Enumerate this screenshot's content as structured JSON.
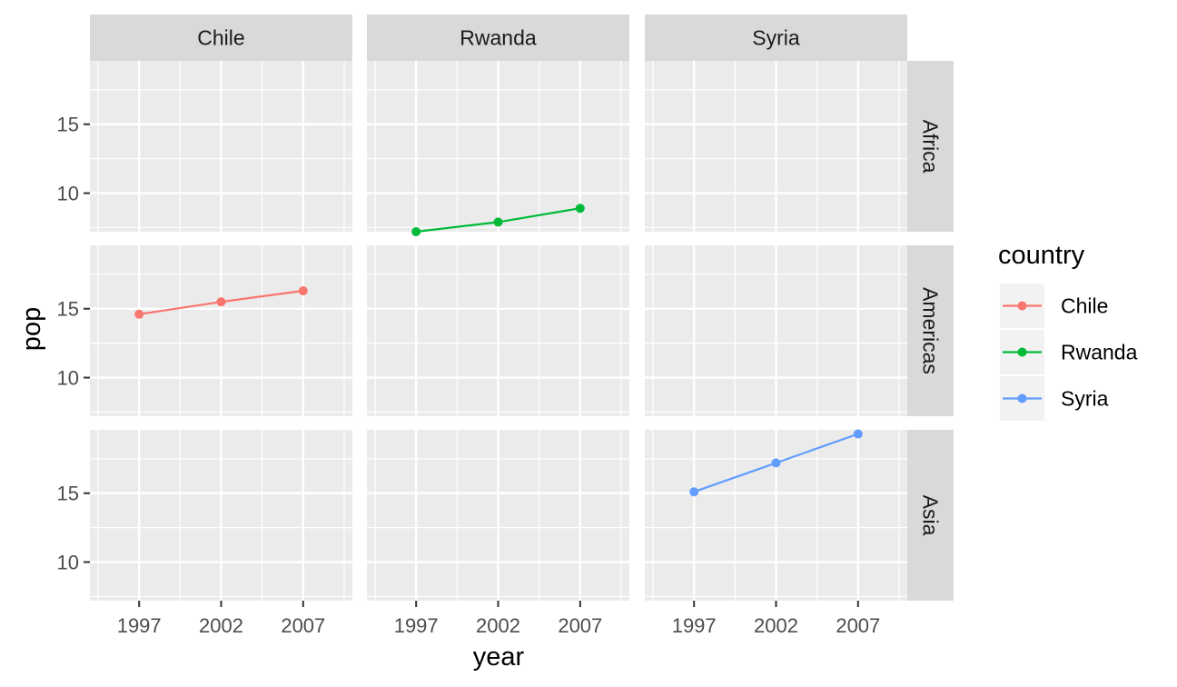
{
  "chart_data": {
    "type": "line",
    "facet_columns": [
      "Chile",
      "Rwanda",
      "Syria"
    ],
    "facet_rows": [
      "Africa",
      "Americas",
      "Asia"
    ],
    "xlabel": "year",
    "ylabel": "pop",
    "x_ticks": [
      1997,
      2002,
      2007
    ],
    "x_tick_labels": [
      "1997",
      "2002",
      "2007"
    ],
    "y_ticks": [
      10,
      15
    ],
    "y_tick_labels": [
      "10",
      "15"
    ],
    "xlim": [
      1994,
      2010
    ],
    "ylim": [
      7.2,
      19.6
    ],
    "markers": true,
    "grid": true,
    "legend": {
      "title": "country",
      "position": "right",
      "entries": [
        {
          "name": "Chile",
          "color": "#F8766D"
        },
        {
          "name": "Rwanda",
          "color": "#00BA38"
        },
        {
          "name": "Syria",
          "color": "#619CFF"
        }
      ]
    },
    "series": [
      {
        "name": "Chile",
        "facet_row": "Americas",
        "facet_col": "Chile",
        "color": "#F8766D",
        "x": [
          1997,
          2002,
          2007
        ],
        "values": [
          14.6,
          15.5,
          16.3
        ]
      },
      {
        "name": "Rwanda",
        "facet_row": "Africa",
        "facet_col": "Rwanda",
        "color": "#00BA38",
        "x": [
          1997,
          2002,
          2007
        ],
        "values": [
          7.2,
          7.9,
          8.9
        ]
      },
      {
        "name": "Syria",
        "facet_row": "Asia",
        "facet_col": "Syria",
        "color": "#619CFF",
        "x": [
          1997,
          2002,
          2007
        ],
        "values": [
          15.1,
          17.2,
          19.3
        ]
      }
    ]
  }
}
